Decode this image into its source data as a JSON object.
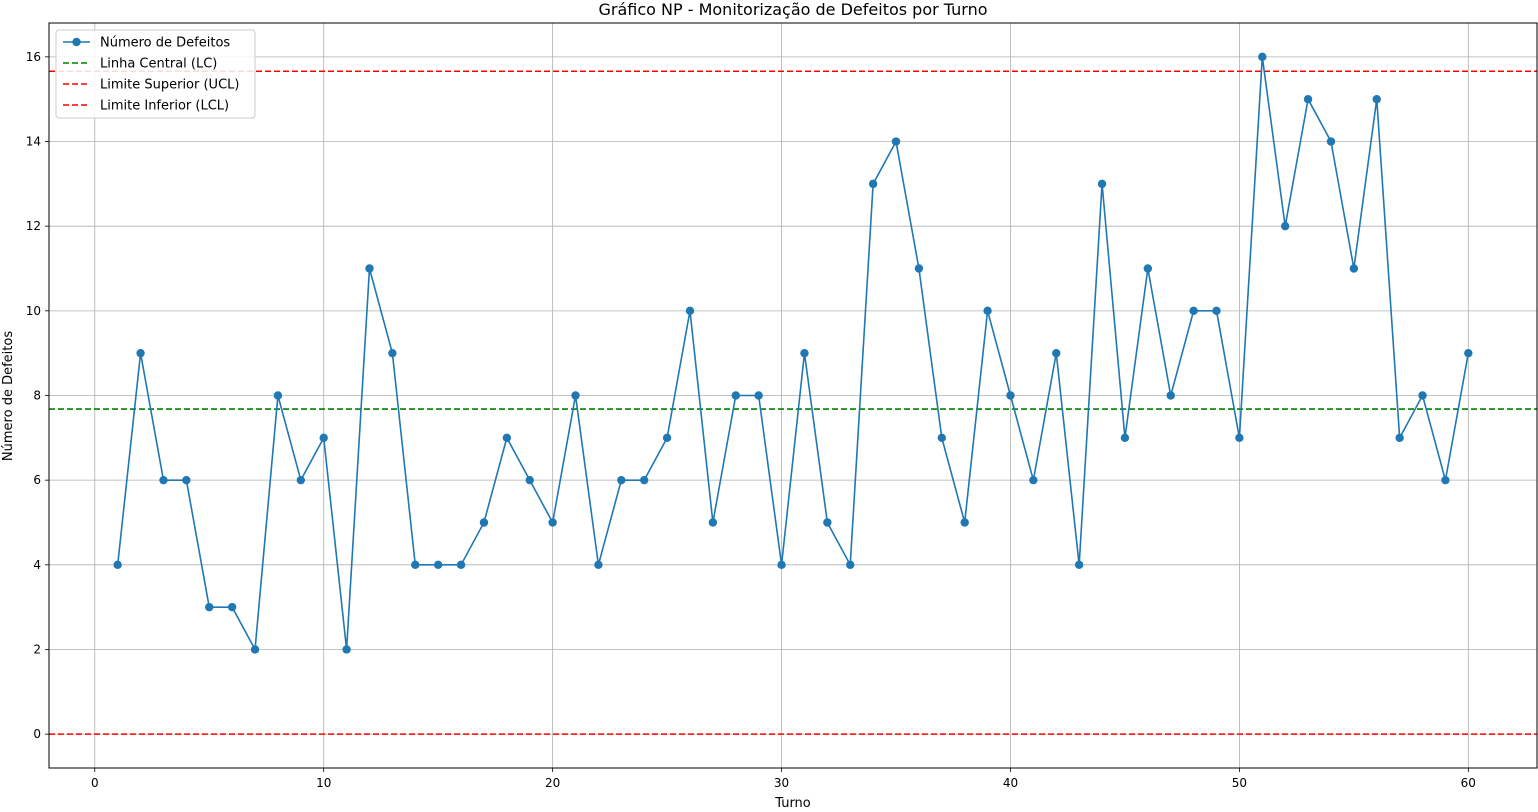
{
  "chart_data": {
    "type": "line",
    "title": "Gráfico NP - Monitorização de Defeitos por Turno",
    "xlabel": "Turno",
    "ylabel": "Número de Defeitos",
    "xlim": [
      -2,
      63
    ],
    "ylim": [
      -0.8,
      16.8
    ],
    "x_ticks": [
      0,
      10,
      20,
      30,
      40,
      50,
      60
    ],
    "y_ticks": [
      0,
      2,
      4,
      6,
      8,
      10,
      12,
      14,
      16
    ],
    "grid": true,
    "legend_position": "top-left",
    "series": [
      {
        "name": "Número de Defeitos",
        "color": "#1f77b4",
        "style": "solid-with-markers",
        "x": [
          1,
          2,
          3,
          4,
          5,
          6,
          7,
          8,
          9,
          10,
          11,
          12,
          13,
          14,
          15,
          16,
          17,
          18,
          19,
          20,
          21,
          22,
          23,
          24,
          25,
          26,
          27,
          28,
          29,
          30,
          31,
          32,
          33,
          34,
          35,
          36,
          37,
          38,
          39,
          40,
          41,
          42,
          43,
          44,
          45,
          46,
          47,
          48,
          49,
          50,
          51,
          52,
          53,
          54,
          55,
          56,
          57,
          58,
          59,
          60
        ],
        "values": [
          4,
          9,
          6,
          6,
          3,
          3,
          2,
          8,
          6,
          7,
          2,
          11,
          9,
          4,
          4,
          4,
          5,
          7,
          6,
          5,
          8,
          4,
          6,
          6,
          7,
          10,
          5,
          8,
          8,
          4,
          9,
          5,
          4,
          13,
          14,
          11,
          7,
          5,
          10,
          8,
          6,
          9,
          4,
          13,
          7,
          11,
          8,
          10,
          10,
          7,
          16,
          12,
          15,
          14,
          11,
          15,
          7,
          8,
          6,
          9
        ]
      }
    ],
    "reference_lines": [
      {
        "name": "Linha Central (LC)",
        "value": 7.68,
        "color": "#008000",
        "style": "dashed"
      },
      {
        "name": "Limite Superior (UCL)",
        "value": 15.66,
        "color": "#ff0000",
        "style": "dashed"
      },
      {
        "name": "Limite Inferior (LCL)",
        "value": 0,
        "color": "#ff0000",
        "style": "dashed"
      }
    ]
  }
}
